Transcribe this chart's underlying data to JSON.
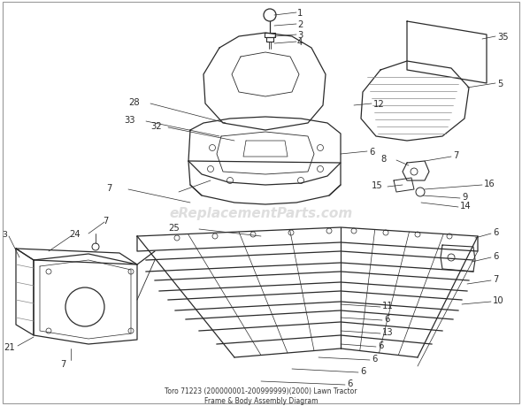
{
  "title": "Toro 71223 (200000001-200999999)(2000) Lawn Tractor\nFrame & Body Assembly Diagram",
  "bg_color": "#ffffff",
  "watermark": "eReplacementParts.com",
  "watermark_color": "#c8c8c8",
  "dark": "#2a2a2a",
  "gray": "#888888",
  "light": "#aaaaaa"
}
